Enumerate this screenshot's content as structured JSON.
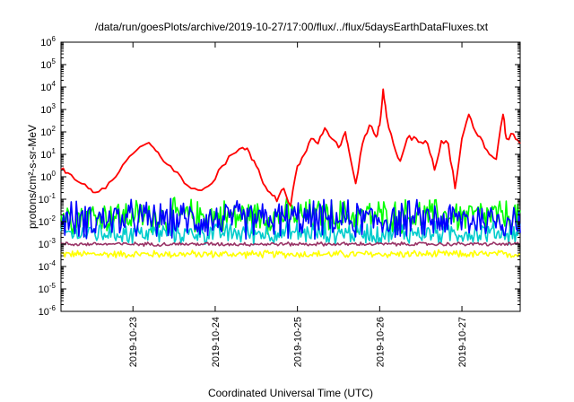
{
  "chart_data": {
    "type": "line",
    "title": "/data/run/goesPlots/archive/2019-10-27/17:00/flux/../flux/5daysEarthDataFluxes.txt",
    "xlabel": "Coordinated Universal Time (UTC)",
    "ylabel": "protons/cm²-s-sr-MeV",
    "x_range": [
      "2019-10-22T03:00",
      "2019-10-27T17:00"
    ],
    "x_ticks": [
      "2019-10-23",
      "2019-10-24",
      "2019-10-25",
      "2019-10-26",
      "2019-10-27"
    ],
    "y_scale": "log",
    "ylim": [
      1e-06,
      1000000.0
    ],
    "y_ticks": [
      {
        "mant": "10",
        "exp": "-6"
      },
      {
        "mant": "10",
        "exp": "-5"
      },
      {
        "mant": "10",
        "exp": "-4"
      },
      {
        "mant": "10",
        "exp": "-3"
      },
      {
        "mant": "10",
        "exp": "-2"
      },
      {
        "mant": "10",
        "exp": "-1"
      },
      {
        "mant": "10",
        "exp": "0"
      },
      {
        "mant": "10",
        "exp": "1"
      },
      {
        "mant": "10",
        "exp": "2"
      },
      {
        "mant": "10",
        "exp": "3"
      },
      {
        "mant": "10",
        "exp": "4"
      },
      {
        "mant": "10",
        "exp": "5"
      },
      {
        "mant": "10",
        "exp": "6"
      }
    ],
    "grid": false,
    "legend": "none",
    "series": [
      {
        "color": "#ffff00",
        "noisy": true,
        "base_log": -3.45,
        "amplitude": 0.2,
        "points": [
          [
            "2019-10-22T03:00",
            0.00035
          ],
          [
            "2019-10-27T17:00",
            0.00035
          ]
        ]
      },
      {
        "color": "#00ff00",
        "noisy": true,
        "base_log": -1.75,
        "amplitude": 0.9,
        "points": [
          [
            "2019-10-22T03:00",
            0.02
          ],
          [
            "2019-10-27T17:00",
            0.02
          ]
        ]
      },
      {
        "color": "#00cccc",
        "noisy": true,
        "base_log": -2.5,
        "amplitude": 0.6,
        "points": [
          [
            "2019-10-22T03:00",
            0.003
          ],
          [
            "2019-10-27T17:00",
            0.003
          ]
        ]
      },
      {
        "color": "#0000ff",
        "noisy": true,
        "base_log": -1.9,
        "amplitude": 1.0,
        "points": [
          [
            "2019-10-22T03:00",
            0.012
          ],
          [
            "2019-10-27T17:00",
            0.012
          ]
        ]
      },
      {
        "color": "#993366",
        "noisy": true,
        "base_log": -3.0,
        "amplitude": 0.1,
        "points": [
          [
            "2019-10-22T03:00",
            0.001
          ],
          [
            "2019-10-27T17:00",
            0.001
          ]
        ]
      },
      {
        "color": "#ff0000",
        "noisy": false,
        "points": [
          [
            "2019-10-22T03:00",
            2.0
          ],
          [
            "2019-10-22T05:00",
            1.5
          ],
          [
            "2019-10-22T08:00",
            0.6
          ],
          [
            "2019-10-22T11:00",
            0.3
          ],
          [
            "2019-10-22T13:00",
            0.2
          ],
          [
            "2019-10-22T16:00",
            0.3
          ],
          [
            "2019-10-22T19:00",
            1.0
          ],
          [
            "2019-10-22T22:00",
            5.0
          ],
          [
            "2019-10-23T01:00",
            15.0
          ],
          [
            "2019-10-23T04:00",
            30.0
          ],
          [
            "2019-10-23T06:00",
            20.0
          ],
          [
            "2019-10-23T08:00",
            8.0
          ],
          [
            "2019-10-23T11:00",
            3.0
          ],
          [
            "2019-10-23T14:00",
            1.0
          ],
          [
            "2019-10-23T17:00",
            0.3
          ],
          [
            "2019-10-23T20:00",
            0.25
          ],
          [
            "2019-10-23T23:00",
            0.5
          ],
          [
            "2019-10-24T02:00",
            3.0
          ],
          [
            "2019-10-24T05:00",
            10.0
          ],
          [
            "2019-10-24T08:00",
            20.0
          ],
          [
            "2019-10-24T10:00",
            12.0
          ],
          [
            "2019-10-24T12:00",
            3.0
          ],
          [
            "2019-10-24T14:00",
            0.5
          ],
          [
            "2019-10-24T16:00",
            0.2
          ],
          [
            "2019-10-24T18:00",
            0.08
          ],
          [
            "2019-10-24T20:00",
            0.3
          ],
          [
            "2019-10-24T22:00",
            0.05
          ],
          [
            "2019-10-25T00:00",
            3.0
          ],
          [
            "2019-10-25T02:00",
            10.0
          ],
          [
            "2019-10-25T04:00",
            50.0
          ],
          [
            "2019-10-25T06:00",
            30.0
          ],
          [
            "2019-10-25T08:00",
            150.0
          ],
          [
            "2019-10-25T10:00",
            50.0
          ],
          [
            "2019-10-25T12:00",
            20.0
          ],
          [
            "2019-10-25T14:00",
            100.0
          ],
          [
            "2019-10-25T15:00",
            15.0
          ],
          [
            "2019-10-25T17:00",
            0.5
          ],
          [
            "2019-10-25T19:00",
            30.0
          ],
          [
            "2019-10-25T21:00",
            200.0
          ],
          [
            "2019-10-25T23:00",
            60.0
          ],
          [
            "2019-10-26T00:00",
            200.0
          ],
          [
            "2019-10-26T01:00",
            8000.0
          ],
          [
            "2019-10-26T02:00",
            500.0
          ],
          [
            "2019-10-26T04:00",
            30.0
          ],
          [
            "2019-10-26T06:00",
            5.0
          ],
          [
            "2019-10-26T08:00",
            50.0
          ],
          [
            "2019-10-26T10:00",
            60.0
          ],
          [
            "2019-10-26T12:00",
            35.0
          ],
          [
            "2019-10-26T14:00",
            30.0
          ],
          [
            "2019-10-26T16:00",
            2.0
          ],
          [
            "2019-10-26T18:00",
            40.0
          ],
          [
            "2019-10-26T20:00",
            30.0
          ],
          [
            "2019-10-26T22:00",
            0.3
          ],
          [
            "2019-10-27T00:00",
            50.0
          ],
          [
            "2019-10-27T02:00",
            600.0
          ],
          [
            "2019-10-27T04:00",
            100.0
          ],
          [
            "2019-10-27T06:00",
            40.0
          ],
          [
            "2019-10-27T08:00",
            10.0
          ],
          [
            "2019-10-27T10:00",
            6.0
          ],
          [
            "2019-10-27T12:00",
            600.0
          ],
          [
            "2019-10-27T13:00",
            50.0
          ],
          [
            "2019-10-27T15:00",
            80.0
          ],
          [
            "2019-10-27T17:00",
            30.0
          ]
        ]
      }
    ]
  }
}
